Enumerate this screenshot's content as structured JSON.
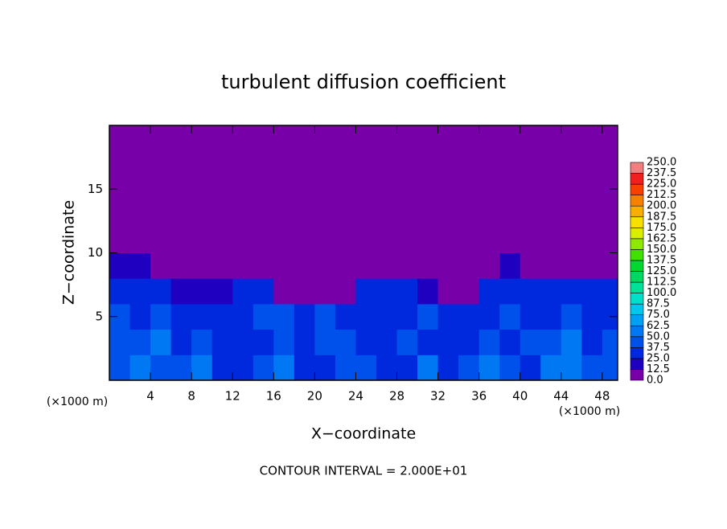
{
  "chart_data": {
    "type": "heatmap",
    "title": "turbulent diffusion coefficient",
    "xlabel": "X−coordinate",
    "ylabel": "Z−coordinate",
    "xunit": "(×1000 m)",
    "xunit2": "(×1000 m)",
    "footer": "CONTOUR INTERVAL = 2.000E+01",
    "xlim": [
      0,
      49.5
    ],
    "ylim": [
      0,
      20
    ],
    "xticks": [
      4,
      8,
      12,
      16,
      20,
      24,
      28,
      32,
      36,
      40,
      44,
      48
    ],
    "yticks": [
      5,
      10,
      15
    ],
    "x": [
      1,
      3,
      5,
      7,
      9,
      11,
      13,
      15,
      17,
      19,
      21,
      23,
      25,
      27,
      29,
      31,
      33,
      35,
      37,
      39,
      41,
      43,
      45,
      47,
      49
    ],
    "y": [
      1,
      3,
      5,
      7,
      9,
      11,
      13,
      15,
      17,
      19
    ],
    "z": [
      [
        45,
        55,
        45,
        40,
        55,
        35,
        30,
        40,
        50,
        35,
        30,
        45,
        40,
        30,
        35,
        50,
        35,
        45,
        55,
        40,
        35,
        55,
        50,
        40,
        45
      ],
      [
        40,
        45,
        50,
        35,
        40,
        30,
        30,
        35,
        40,
        35,
        45,
        40,
        30,
        30,
        40,
        35,
        30,
        35,
        40,
        30,
        45,
        40,
        50,
        35,
        40
      ],
      [
        40,
        30,
        40,
        35,
        30,
        35,
        30,
        40,
        45,
        30,
        40,
        30,
        35,
        30,
        25,
        40,
        30,
        30,
        35,
        45,
        30,
        35,
        40,
        35,
        30
      ],
      [
        30,
        30,
        25,
        20,
        20,
        15,
        25,
        30,
        10,
        5,
        5,
        5,
        25,
        25,
        30,
        20,
        5,
        5,
        30,
        30,
        30,
        25,
        30,
        25,
        30
      ],
      [
        20,
        15,
        5,
        0,
        0,
        0,
        0,
        0,
        0,
        0,
        0,
        0,
        0,
        0,
        0,
        0,
        0,
        0,
        0,
        15,
        5,
        0,
        0,
        0,
        5
      ],
      [
        0,
        0,
        0,
        0,
        0,
        0,
        0,
        0,
        0,
        0,
        0,
        0,
        0,
        0,
        0,
        0,
        0,
        0,
        0,
        0,
        0,
        0,
        0,
        0,
        0
      ],
      [
        0,
        0,
        0,
        0,
        0,
        0,
        0,
        0,
        0,
        0,
        0,
        0,
        0,
        0,
        0,
        0,
        0,
        0,
        0,
        0,
        0,
        0,
        0,
        0,
        0
      ],
      [
        0,
        0,
        0,
        0,
        0,
        0,
        0,
        0,
        0,
        0,
        0,
        0,
        0,
        0,
        0,
        0,
        0,
        0,
        0,
        0,
        0,
        0,
        0,
        0,
        0
      ],
      [
        0,
        0,
        0,
        0,
        0,
        0,
        0,
        0,
        0,
        0,
        0,
        0,
        0,
        0,
        0,
        0,
        0,
        0,
        0,
        0,
        0,
        0,
        0,
        0,
        0
      ],
      [
        0,
        0,
        0,
        0,
        0,
        0,
        0,
        0,
        0,
        0,
        0,
        0,
        0,
        0,
        0,
        0,
        0,
        0,
        0,
        0,
        0,
        0,
        0,
        0,
        0
      ]
    ],
    "colorbar": {
      "levels": [
        {
          "value": 0,
          "label": "0.0"
        },
        12.5,
        {
          "value": 25,
          "label": "25.0"
        },
        37.5,
        {
          "value": 50,
          "label": "50.0"
        },
        62.5,
        {
          "value": 75,
          "label": "75.0"
        },
        87.5,
        {
          "value": 100,
          "label": "100.0"
        },
        112.5,
        {
          "value": 125,
          "label": "125.0"
        },
        137.5,
        {
          "value": 150,
          "label": "150.0"
        },
        162.5,
        {
          "value": 175,
          "label": "175.0"
        },
        187.5,
        {
          "value": 200,
          "label": "200.0"
        },
        212.5,
        {
          "value": 225,
          "label": "225.0"
        },
        237.5,
        {
          "value": 250,
          "label": "250.0"
        }
      ],
      "colors": [
        "#7800a8",
        "#2000c0",
        "#0028dc",
        "#0050ec",
        "#0078f4",
        "#00a0f4",
        "#00c8ec",
        "#00e0c8",
        "#00e098",
        "#00d860",
        "#00d830",
        "#40e000",
        "#90e800",
        "#d8f000",
        "#f8e000",
        "#f8b000",
        "#f88000",
        "#f84000",
        "#f02020",
        "#f08080"
      ]
    }
  }
}
